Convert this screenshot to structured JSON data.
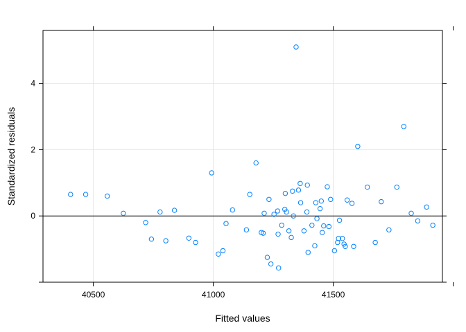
{
  "chart_data": {
    "type": "scatter",
    "xlabel": "Fitted values",
    "ylabel": "Standardized residuals",
    "xlim": [
      40290,
      41955
    ],
    "ylim": [
      -2.0,
      5.6
    ],
    "x_ticks": [
      40500,
      41000,
      41500
    ],
    "x_tick_labels": [
      "40500",
      "41000",
      "41500"
    ],
    "y_ticks": [
      0,
      2,
      4
    ],
    "y_tick_labels": [
      "0",
      "2",
      "4"
    ],
    "y_ticks_unlabeled": [
      -2
    ],
    "x_ticks_unlabeled": [
      42000
    ],
    "grid": true,
    "reference_line_y": 0,
    "point_color": "#0080ff",
    "grid_color": "#e6e6e6",
    "points": [
      [
        40405,
        0.65
      ],
      [
        40468,
        0.65
      ],
      [
        40558,
        0.6
      ],
      [
        40625,
        0.08
      ],
      [
        40718,
        -0.2
      ],
      [
        40742,
        -0.7
      ],
      [
        40778,
        0.12
      ],
      [
        40802,
        -0.75
      ],
      [
        40838,
        0.17
      ],
      [
        40898,
        -0.67
      ],
      [
        40926,
        -0.8
      ],
      [
        40993,
        1.3
      ],
      [
        41021,
        -1.15
      ],
      [
        41040,
        -1.05
      ],
      [
        41053,
        -0.23
      ],
      [
        41080,
        0.18
      ],
      [
        41138,
        -0.42
      ],
      [
        41152,
        0.65
      ],
      [
        41178,
        1.6
      ],
      [
        41200,
        -0.5
      ],
      [
        41208,
        -0.52
      ],
      [
        41212,
        0.08
      ],
      [
        41225,
        -1.25
      ],
      [
        41232,
        0.5
      ],
      [
        41240,
        -1.45
      ],
      [
        41253,
        0.05
      ],
      [
        41268,
        0.15
      ],
      [
        41270,
        -0.55
      ],
      [
        41272,
        -1.57
      ],
      [
        41285,
        -0.28
      ],
      [
        41298,
        0.2
      ],
      [
        41300,
        0.68
      ],
      [
        41305,
        0.12
      ],
      [
        41315,
        -0.45
      ],
      [
        41325,
        -0.65
      ],
      [
        41330,
        0.75
      ],
      [
        41334,
        0.0
      ],
      [
        41345,
        5.1
      ],
      [
        41355,
        0.78
      ],
      [
        41362,
        0.98
      ],
      [
        41364,
        0.4
      ],
      [
        41378,
        -0.45
      ],
      [
        41390,
        0.12
      ],
      [
        41392,
        0.93
      ],
      [
        41395,
        -1.1
      ],
      [
        41411,
        -0.28
      ],
      [
        41423,
        -0.9
      ],
      [
        41427,
        0.4
      ],
      [
        41432,
        -0.08
      ],
      [
        41445,
        0.22
      ],
      [
        41450,
        0.45
      ],
      [
        41454,
        -0.5
      ],
      [
        41460,
        -0.3
      ],
      [
        41475,
        0.88
      ],
      [
        41482,
        -0.32
      ],
      [
        41489,
        0.5
      ],
      [
        41505,
        -1.05
      ],
      [
        41518,
        -0.8
      ],
      [
        41522,
        -0.68
      ],
      [
        41526,
        -0.13
      ],
      [
        41538,
        -0.68
      ],
      [
        41545,
        -0.85
      ],
      [
        41550,
        -0.92
      ],
      [
        41558,
        0.48
      ],
      [
        41578,
        0.38
      ],
      [
        41585,
        -0.92
      ],
      [
        41602,
        2.1
      ],
      [
        41642,
        0.87
      ],
      [
        41675,
        -0.8
      ],
      [
        41700,
        0.43
      ],
      [
        41732,
        -0.42
      ],
      [
        41765,
        0.87
      ],
      [
        41794,
        2.7
      ],
      [
        41825,
        0.08
      ],
      [
        41852,
        -0.15
      ],
      [
        41889,
        0.27
      ],
      [
        41915,
        -0.28
      ]
    ]
  }
}
